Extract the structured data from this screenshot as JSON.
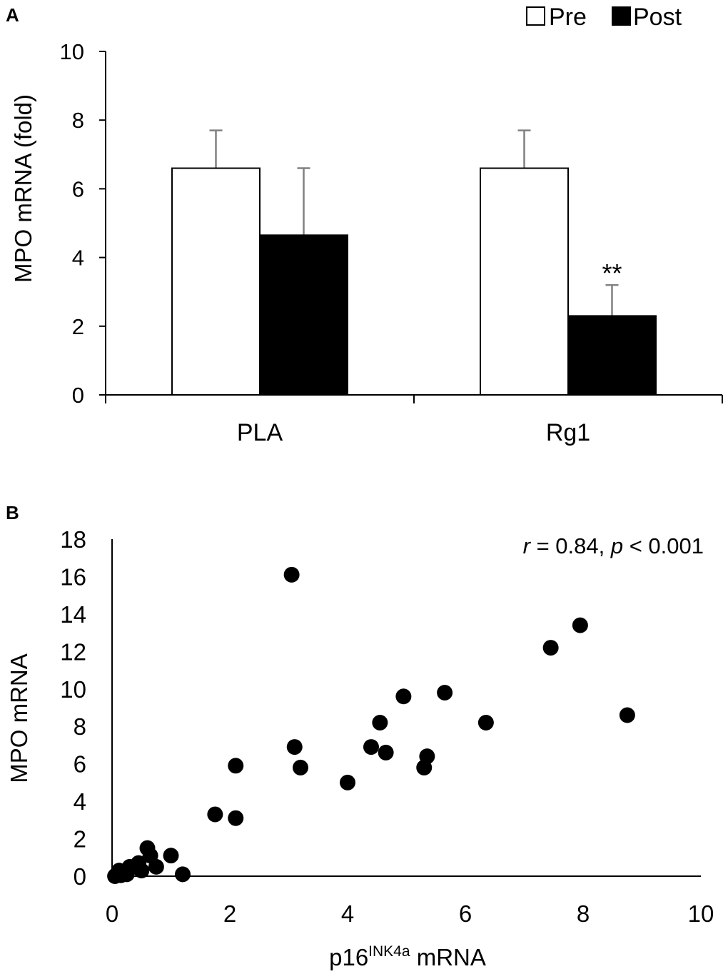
{
  "chart_data": [
    {
      "panel_label": "A",
      "type": "bar",
      "title": "",
      "xlabel": "",
      "ylabel": "MPO mRNA (fold)",
      "ylim": [
        0,
        10
      ],
      "yticks": [
        "0",
        "2",
        "4",
        "6",
        "8",
        "10"
      ],
      "categories": [
        "PLA",
        "Rg1"
      ],
      "legend_position": "top-right",
      "series": [
        {
          "name": "Pre",
          "color": "#ffffff",
          "values": [
            6.6,
            6.6
          ],
          "errors": [
            1.1,
            1.1
          ]
        },
        {
          "name": "Post",
          "color": "#000000",
          "values": [
            4.65,
            2.3
          ],
          "errors": [
            1.95,
            0.9
          ]
        }
      ],
      "annotations": [
        {
          "text": "**",
          "series": "Post",
          "category": "Rg1"
        }
      ],
      "grid": false
    },
    {
      "panel_label": "B",
      "type": "scatter",
      "title": "",
      "xlabel_main": "p16",
      "xlabel_sup": "INK4a",
      "xlabel_rest": " mRNA",
      "ylabel": "MPO mRNA",
      "xlim": [
        0,
        10
      ],
      "ylim": [
        0,
        18
      ],
      "xticks": [
        "0",
        "2",
        "4",
        "6",
        "8",
        "10"
      ],
      "yticks": [
        "0",
        "2",
        "4",
        "6",
        "8",
        "10",
        "12",
        "14",
        "16",
        "18"
      ],
      "stat_r_symbol": "r",
      "stat_r_value": " = 0.84, ",
      "stat_p_symbol": "p",
      "stat_p_value": " < 0.001",
      "grid": false,
      "points": [
        [
          0.05,
          0.0
        ],
        [
          0.08,
          0.1
        ],
        [
          0.12,
          0.3
        ],
        [
          0.15,
          0.05
        ],
        [
          0.25,
          0.1
        ],
        [
          0.3,
          0.5
        ],
        [
          0.45,
          0.7
        ],
        [
          0.5,
          0.3
        ],
        [
          0.6,
          1.5
        ],
        [
          0.65,
          1.1
        ],
        [
          0.75,
          0.5
        ],
        [
          1.0,
          1.1
        ],
        [
          1.2,
          0.1
        ],
        [
          1.75,
          3.3
        ],
        [
          2.1,
          3.1
        ],
        [
          2.1,
          5.9
        ],
        [
          3.05,
          16.1
        ],
        [
          3.1,
          6.9
        ],
        [
          3.2,
          5.8
        ],
        [
          4.0,
          5.0
        ],
        [
          4.4,
          6.9
        ],
        [
          4.55,
          8.2
        ],
        [
          4.65,
          6.6
        ],
        [
          4.95,
          9.6
        ],
        [
          5.3,
          5.8
        ],
        [
          5.35,
          6.4
        ],
        [
          5.65,
          9.8
        ],
        [
          6.35,
          8.2
        ],
        [
          7.45,
          12.2
        ],
        [
          7.95,
          13.4
        ],
        [
          8.75,
          8.6
        ]
      ]
    }
  ]
}
